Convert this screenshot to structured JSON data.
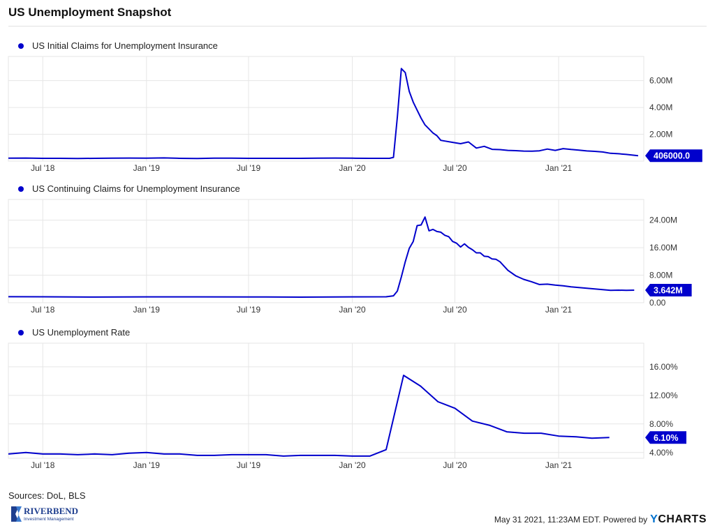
{
  "title": "US Unemployment Snapshot",
  "sources": "Sources: DoL, BLS",
  "footer": {
    "timestamp": "May 31 2021, 11:23AM EDT.",
    "powered_by": "Powered by",
    "brand_y": "Y",
    "brand_rest": "CHARTS"
  },
  "logo": {
    "name": "RIVERBEND",
    "sub": "Investment Management"
  },
  "colors": {
    "series": "#0000cc",
    "grid": "#e6e6e6",
    "label_bg": "#0000cc",
    "label_fg": "#ffffff"
  },
  "chart_data": [
    {
      "type": "line",
      "title": "US Initial Claims for Unemployment Insurance",
      "x_tick_labels": [
        "Jul '18",
        "Jan '19",
        "Jul '19",
        "Jan '20",
        "Jul '20",
        "Jan '21"
      ],
      "y_tick_labels": [
        "2.00M",
        "4.00M",
        "6.00M"
      ],
      "ylim": [
        0,
        7.8
      ],
      "y_unit": "M",
      "last_value_label": "406000.0",
      "series": [
        {
          "x": [
            "2018-05-01",
            "2018-06-01",
            "2018-07-01",
            "2018-08-01",
            "2018-09-01",
            "2018-10-01",
            "2018-11-01",
            "2018-12-01",
            "2019-01-01",
            "2019-02-01",
            "2019-03-01",
            "2019-04-01",
            "2019-05-01",
            "2019-06-01",
            "2019-07-01",
            "2019-08-01",
            "2019-09-01",
            "2019-10-01",
            "2019-11-01",
            "2019-12-01",
            "2020-01-01",
            "2020-02-01",
            "2020-03-07",
            "2020-03-14",
            "2020-03-21",
            "2020-03-28",
            "2020-04-04",
            "2020-04-11",
            "2020-04-18",
            "2020-04-25",
            "2020-05-02",
            "2020-05-09",
            "2020-05-16",
            "2020-05-23",
            "2020-05-30",
            "2020-06-06",
            "2020-06-13",
            "2020-06-27",
            "2020-07-11",
            "2020-07-25",
            "2020-08-08",
            "2020-08-22",
            "2020-09-05",
            "2020-09-19",
            "2020-10-03",
            "2020-10-17",
            "2020-10-31",
            "2020-11-14",
            "2020-11-28",
            "2020-12-12",
            "2020-12-26",
            "2021-01-09",
            "2021-01-23",
            "2021-02-06",
            "2021-02-20",
            "2021-03-06",
            "2021-03-20",
            "2021-04-03",
            "2021-04-17",
            "2021-05-01",
            "2021-05-22"
          ],
          "values": [
            0.22,
            0.23,
            0.21,
            0.21,
            0.2,
            0.21,
            0.22,
            0.23,
            0.22,
            0.24,
            0.21,
            0.2,
            0.22,
            0.22,
            0.21,
            0.21,
            0.21,
            0.21,
            0.22,
            0.23,
            0.22,
            0.21,
            0.21,
            0.28,
            3.3,
            6.9,
            6.6,
            5.2,
            4.4,
            3.8,
            3.2,
            2.7,
            2.4,
            2.1,
            1.9,
            1.55,
            1.5,
            1.4,
            1.3,
            1.43,
            0.97,
            1.1,
            0.88,
            0.86,
            0.8,
            0.78,
            0.75,
            0.74,
            0.77,
            0.9,
            0.8,
            0.93,
            0.87,
            0.82,
            0.76,
            0.73,
            0.68,
            0.58,
            0.55,
            0.5,
            0.406
          ]
        }
      ]
    },
    {
      "type": "line",
      "title": "US Continuing Claims for Unemployment Insurance",
      "x_tick_labels": [
        "Jul '18",
        "Jan '19",
        "Jul '19",
        "Jan '20",
        "Jul '20",
        "Jan '21"
      ],
      "y_tick_labels": [
        "0.00",
        "8.00M",
        "16.00M",
        "24.00M"
      ],
      "ylim": [
        0,
        30
      ],
      "y_unit": "M",
      "last_value_label": "3.642M",
      "series": [
        {
          "x": [
            "2018-05-01",
            "2018-07-01",
            "2018-10-01",
            "2019-01-01",
            "2019-04-01",
            "2019-07-01",
            "2019-10-01",
            "2020-01-01",
            "2020-03-01",
            "2020-03-14",
            "2020-03-21",
            "2020-03-28",
            "2020-04-04",
            "2020-04-11",
            "2020-04-18",
            "2020-04-25",
            "2020-05-02",
            "2020-05-09",
            "2020-05-16",
            "2020-05-23",
            "2020-05-30",
            "2020-06-06",
            "2020-06-13",
            "2020-06-20",
            "2020-06-27",
            "2020-07-04",
            "2020-07-11",
            "2020-07-18",
            "2020-07-25",
            "2020-08-01",
            "2020-08-08",
            "2020-08-15",
            "2020-08-22",
            "2020-08-29",
            "2020-09-05",
            "2020-09-12",
            "2020-09-19",
            "2020-10-03",
            "2020-10-17",
            "2020-10-31",
            "2020-11-14",
            "2020-11-28",
            "2020-12-12",
            "2020-12-26",
            "2021-01-09",
            "2021-01-23",
            "2021-02-06",
            "2021-02-20",
            "2021-03-06",
            "2021-03-20",
            "2021-04-03",
            "2021-04-17",
            "2021-05-01",
            "2021-05-15"
          ],
          "values": [
            1.75,
            1.72,
            1.65,
            1.7,
            1.7,
            1.68,
            1.62,
            1.7,
            1.72,
            2.0,
            3.4,
            7.5,
            11.9,
            15.8,
            17.8,
            22.4,
            22.6,
            24.9,
            20.9,
            21.3,
            20.7,
            20.5,
            19.6,
            19.2,
            17.8,
            17.3,
            16.2,
            17.1,
            16.1,
            15.4,
            14.5,
            14.5,
            13.5,
            13.4,
            12.7,
            12.6,
            11.9,
            9.4,
            7.8,
            6.8,
            6.1,
            5.3,
            5.4,
            5.1,
            4.9,
            4.6,
            4.4,
            4.2,
            4.0,
            3.8,
            3.6,
            3.65,
            3.6,
            3.642
          ]
        }
      ]
    },
    {
      "type": "line",
      "title": "US Unemployment Rate",
      "x_tick_labels": [
        "Jul '18",
        "Jan '19",
        "Jul '19",
        "Jan '20",
        "Jul '20",
        "Jan '21"
      ],
      "y_tick_labels": [
        "4.00%",
        "8.00%",
        "12.00%",
        "16.00%"
      ],
      "ylim": [
        3.2,
        19.3
      ],
      "y_unit": "%",
      "last_value_label": "6.10%",
      "series": [
        {
          "x": [
            "2018-05-01",
            "2018-06-01",
            "2018-07-01",
            "2018-08-01",
            "2018-09-01",
            "2018-10-01",
            "2018-11-01",
            "2018-12-01",
            "2019-01-01",
            "2019-02-01",
            "2019-03-01",
            "2019-04-01",
            "2019-05-01",
            "2019-06-01",
            "2019-07-01",
            "2019-08-01",
            "2019-09-01",
            "2019-10-01",
            "2019-11-01",
            "2019-12-01",
            "2020-01-01",
            "2020-02-01",
            "2020-03-01",
            "2020-04-01",
            "2020-05-01",
            "2020-06-01",
            "2020-07-01",
            "2020-08-01",
            "2020-09-01",
            "2020-10-01",
            "2020-11-01",
            "2020-12-01",
            "2021-01-01",
            "2021-02-01",
            "2021-03-01",
            "2021-04-01"
          ],
          "values": [
            3.8,
            4.0,
            3.8,
            3.8,
            3.7,
            3.8,
            3.7,
            3.9,
            4.0,
            3.8,
            3.8,
            3.6,
            3.6,
            3.7,
            3.7,
            3.7,
            3.5,
            3.6,
            3.6,
            3.6,
            3.5,
            3.5,
            4.4,
            14.8,
            13.3,
            11.1,
            10.2,
            8.4,
            7.8,
            6.9,
            6.7,
            6.7,
            6.3,
            6.2,
            6.0,
            6.1
          ]
        }
      ]
    }
  ]
}
